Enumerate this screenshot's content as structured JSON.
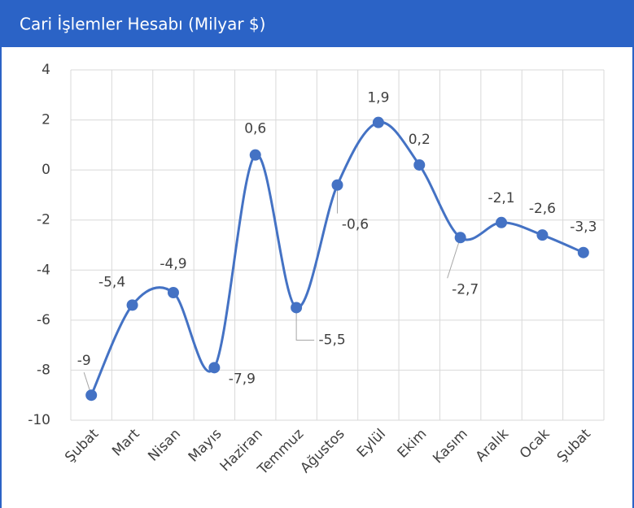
{
  "chart_data": {
    "type": "line",
    "title": "Cari İşlemler Hesabı (Milyar $)",
    "categories": [
      "Şubat",
      "Mart",
      "Nisan",
      "Mayıs",
      "Haziran",
      "Temmuz",
      "Ağustos",
      "Eylül",
      "Ekim",
      "Kasım",
      "Aralık",
      "Ocak",
      "Şubat"
    ],
    "series": [
      {
        "name": "Cari İşlemler Hesabı",
        "color": "#4472c4",
        "values": [
          -9,
          -5.4,
          -4.9,
          -7.9,
          0.6,
          -5.5,
          -0.6,
          1.9,
          0.2,
          -2.7,
          -2.1,
          -2.6,
          -3.3
        ],
        "value_labels": [
          "-9",
          "-5,4",
          "-4,9",
          "-7,9",
          "0,6",
          "-5,5",
          "-0,6",
          "1,9",
          "0,2",
          "-2,7",
          "-2,1",
          "-2,6",
          "-3,3"
        ]
      }
    ],
    "ylim": [
      -10,
      4
    ],
    "yticks": [
      -10,
      -8,
      -6,
      -4,
      -2,
      0,
      2,
      4
    ],
    "grid": true,
    "smooth": true
  }
}
